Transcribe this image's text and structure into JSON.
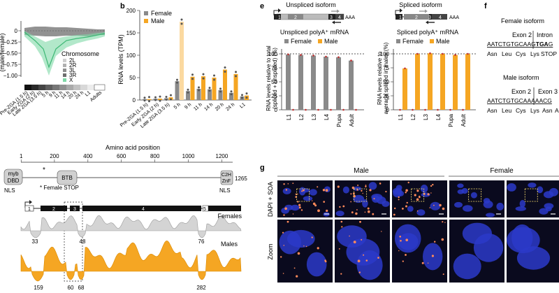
{
  "panel_letters": {
    "b": "b",
    "e": "e",
    "f": "f",
    "g": "g"
  },
  "panel_a": {
    "ylabel": "(male/female)",
    "yticks": [
      "0",
      "−0.25",
      "−0.50",
      "−0.75",
      "−1.00"
    ],
    "legend_title": "Chromosome",
    "legend": [
      "2L",
      "2R",
      "3L",
      "3R",
      "X"
    ],
    "xticks": [
      "Pre-ZGA (1.5 h)",
      "Early ZGA (2 h)",
      "Late ZGA (3.5 h)",
      "5 h",
      "9 h",
      "11 h",
      "14 h",
      "20 h",
      "24 h",
      "L1",
      "Adults"
    ]
  },
  "panel_b": {
    "ylabel": "RNA levels (TPM)",
    "yticks": [
      "0",
      "50",
      "100",
      "150",
      "200"
    ],
    "legend": [
      "Female",
      "Male"
    ],
    "xticks": [
      "Pre-ZGA (1.5 h)",
      "Early ZGA (2 h)",
      "Late ZGA (3.5 h)",
      "5 h",
      "9 h",
      "11 h",
      "14 h",
      "20 h",
      "24 h",
      "L1"
    ]
  },
  "panel_e": {
    "unspliced_title": "Unspliced isoform",
    "spliced_title": "Spliced isoform",
    "unspliced_exons": [
      "1",
      "2",
      "3",
      "4"
    ],
    "spliced_exons": [
      "1",
      "2",
      "3",
      "4"
    ],
    "aaa": "AAA",
    "left_subtitle": "Unspliced polyA⁺ mRNA",
    "right_subtitle": "Spliced polyA⁺ mRNA",
    "legend": [
      "Female",
      "Male"
    ],
    "left_ylabel": [
      "RNA levels relative to total",
      "(spliced + unspliced) (%)"
    ],
    "right_ylabel": [
      "RNA levels relative to",
      "average spliced in males (%)"
    ],
    "yticks": [
      "0",
      "25",
      "50",
      "75",
      "100"
    ],
    "xticks": [
      "L1",
      "L2",
      "L3",
      "L4",
      "Pupa",
      "Adult"
    ]
  },
  "panel_f": {
    "female_title": "Female isoform",
    "female_exon": "Exon 2",
    "female_intron": "Intron",
    "female_seq": "AATCTGTGCAAG",
    "female_stop_codon": "TGA",
    "female_seq_tail": "G",
    "female_aa": [
      "Asn",
      "Leu",
      "Cys",
      "Lys",
      "STOP"
    ],
    "male_title": "Male isoform",
    "male_exon2": "Exon 2",
    "male_exon3": "Exon 3",
    "male_seq": "AATCTGTGCAAAAACG",
    "male_aa": [
      "Asn",
      "Leu",
      "Cys",
      "Lys",
      "Asn",
      "A"
    ]
  },
  "panel_domain": {
    "title": "Amino acid position",
    "ticks": [
      "1",
      "200",
      "400",
      "600",
      "800",
      "1000",
      "1200"
    ],
    "end_label": "1265",
    "domains": {
      "myb": [
        "myb",
        "DBD"
      ],
      "btb": "BTB",
      "znf": [
        "C2H",
        "ZnF"
      ]
    },
    "nls": "NLS",
    "star_note": "* Female STOP",
    "star": "*",
    "exons": [
      "1",
      "2",
      "3",
      "4",
      "5"
    ],
    "females_label": "Females",
    "males_label": "Males",
    "female_numbers": [
      "33",
      "48",
      "76"
    ],
    "male_numbers": [
      "159",
      "60",
      "68",
      "282"
    ]
  },
  "panel_g": {
    "male_label": "Male",
    "female_label": "Female",
    "row1_label": "DAPI + SOA",
    "row2_label": "Zoom"
  },
  "colors": {
    "female": "#8a8a8a",
    "male": "#f5a623",
    "male_light": "#fbd9a0",
    "x_green": "#7fd9a7",
    "micro_bg": "#0a0a1e"
  }
}
